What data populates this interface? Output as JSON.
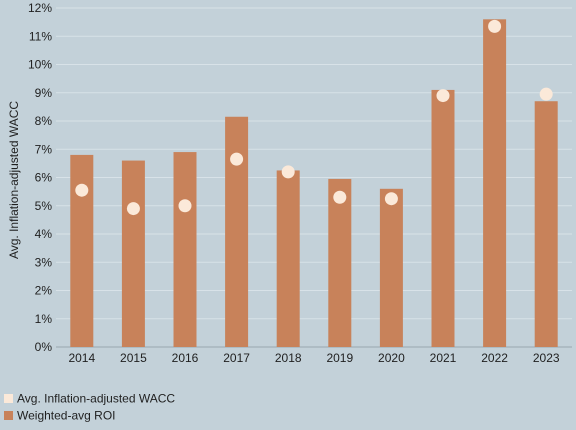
{
  "chart_data": {
    "type": "bar",
    "ylabel": "Avg. Inflation-adjusted WACC",
    "xlabel": "",
    "title": "",
    "categories": [
      "2014",
      "2015",
      "2016",
      "2017",
      "2018",
      "2019",
      "2020",
      "2021",
      "2022",
      "2023"
    ],
    "series": [
      {
        "name": "Weighted-avg ROI",
        "kind": "bar",
        "color": "#c8825a",
        "values": [
          6.8,
          6.6,
          6.9,
          8.15,
          6.25,
          5.95,
          5.6,
          9.1,
          11.6,
          8.7
        ]
      },
      {
        "name": "Avg. Inflation-adjusted WACC",
        "kind": "point",
        "color": "#fbe9d9",
        "values": [
          5.55,
          4.9,
          5.0,
          6.65,
          6.2,
          5.3,
          5.25,
          8.9,
          11.35,
          8.95
        ]
      }
    ],
    "ylim": [
      0,
      12
    ],
    "yticks": [
      "0%",
      "1%",
      "2%",
      "3%",
      "4%",
      "5%",
      "6%",
      "7%",
      "8%",
      "9%",
      "10%",
      "11%",
      "12%"
    ],
    "grid": "horizontal",
    "legend_position": "bottom-left"
  },
  "legend": {
    "wacc_label": "Avg. Inflation-adjusted WACC",
    "roi_label": "Weighted-avg ROI"
  }
}
